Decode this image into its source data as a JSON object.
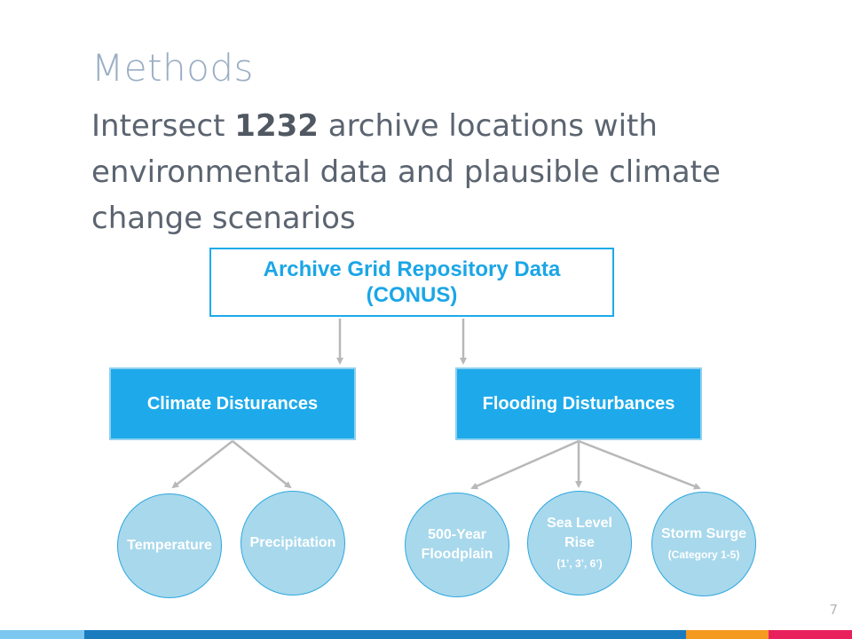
{
  "slide": {
    "title": "Methods",
    "subtitle": {
      "prefix": "Intersect ",
      "bold": "1232",
      "suffix": " archive locations with environmental data and plausible climate change scenarios"
    },
    "page_number": "7"
  },
  "diagram": {
    "root": {
      "line1": "Archive Grid Repository Data",
      "line2": "(CONUS)"
    },
    "branches": {
      "climate": {
        "label": "Climate Disturances"
      },
      "flooding": {
        "label": "Flooding Disturbances"
      }
    },
    "leaves": {
      "temperature": {
        "label": "Temperature"
      },
      "precipitation": {
        "label": "Precipitation"
      },
      "floodplain": {
        "line1": "500-Year",
        "line2": "Floodplain"
      },
      "sea_level": {
        "line1": "Sea Level",
        "line2": "Rise",
        "sub": "(1’, 3’, 6’)"
      },
      "storm_surge": {
        "line1": "Storm Surge",
        "sub": "(Category 1-5)"
      }
    }
  },
  "colors": {
    "accent_blue": "#1eaaea",
    "circle_fill": "#a8d8ec",
    "title_gray_blue": "#9aaec4",
    "text_gray": "#5b6470",
    "connector_gray": "#b8b8b8",
    "footer": [
      "#7cc7ef",
      "#1a7bbf",
      "#f49a20",
      "#e8215c"
    ]
  }
}
